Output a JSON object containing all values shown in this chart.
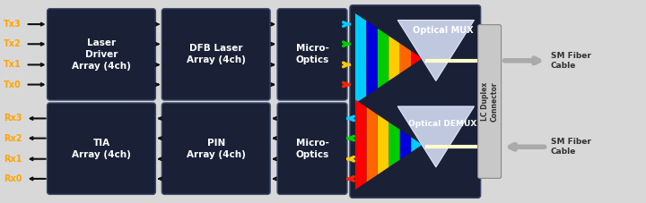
{
  "bg_color": "#d8d8d8",
  "block_color": "#1a2035",
  "block_edge_color": "#2a3555",
  "text_color": "#ffffff",
  "tx_color": "#ffa500",
  "rx_color": "#ffa500",
  "tx_labels": [
    "Tx3",
    "Tx2",
    "Tx1",
    "Tx0"
  ],
  "rx_labels": [
    "Rx3",
    "Rx2",
    "Rx1",
    "Rx0"
  ],
  "channel_colors_tx": [
    "#00ccff",
    "#00cc00",
    "#ffcc00",
    "#ff2200"
  ],
  "channel_colors_rx": [
    "#00ccff",
    "#00cc00",
    "#ffcc00",
    "#ff2200"
  ],
  "mux_label": "Optical MUX",
  "demux_label": "Optical DEMUX",
  "connector_label": "LC Duplex\nConnector",
  "sm_fiber_top": "SM Fiber\nCable",
  "sm_fiber_bot": "SM Fiber\nCable",
  "spectrum_colors_mux": [
    "#ff0000",
    "#ff6600",
    "#ffcc00",
    "#00cc00",
    "#0000dd",
    "#00ccff"
  ],
  "spectrum_colors_demux": [
    "#ff0000",
    "#ff6600",
    "#ffcc00",
    "#00cc00",
    "#0000dd",
    "#00ccff"
  ]
}
